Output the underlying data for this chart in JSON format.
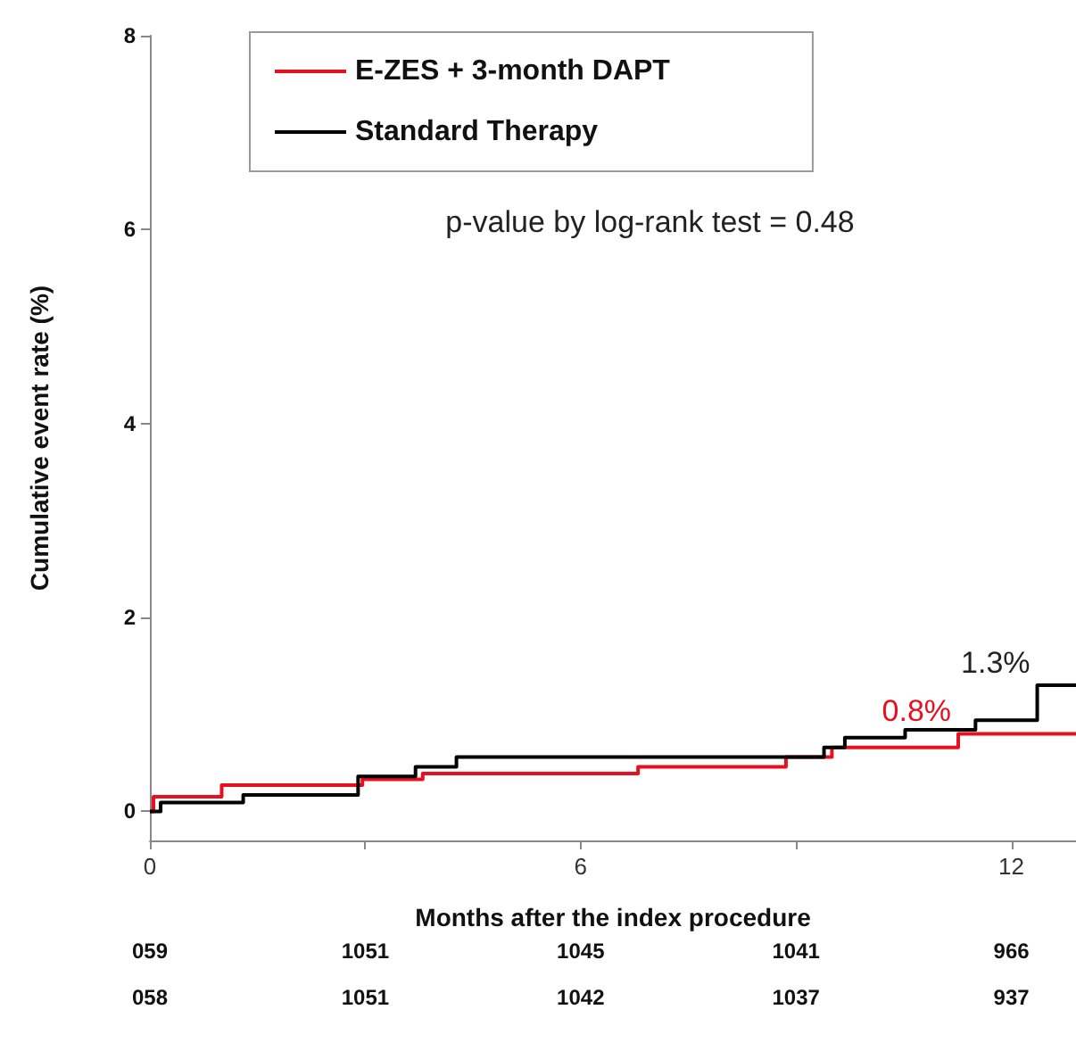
{
  "chart_data": {
    "type": "step",
    "xlabel": "Months after the index procedure",
    "ylabel": "Cumulative event rate (%)",
    "xlim": [
      0,
      12.9
    ],
    "xticks": [
      0,
      {
        "value": 3,
        "label": null
      },
      6,
      {
        "value": 9,
        "label": null
      },
      12
    ],
    "ylim": [
      -0.3,
      8
    ],
    "yticks": [
      0,
      2,
      4,
      6,
      8
    ],
    "legend": "top",
    "line_style": "solid",
    "marker": "none",
    "series": [
      {
        "name": "E-ZES + 3-month DAPT",
        "color": "#e8101e",
        "x": [
          0,
          0.05,
          1.0,
          2.96,
          3.8,
          6.8,
          8.86,
          9.5,
          11.26,
          12.9
        ],
        "values": [
          0,
          0.15,
          0.27,
          0.33,
          0.39,
          0.46,
          0.56,
          0.66,
          0.8,
          0.8
        ]
      },
      {
        "name": "Standard Therapy",
        "color": "#000000",
        "x": [
          0,
          0.15,
          1.3,
          2.9,
          3.7,
          4.27,
          9.39,
          9.68,
          10.52,
          11.5,
          12.36,
          12.9
        ],
        "values": [
          0,
          0.09,
          0.17,
          0.36,
          0.46,
          0.56,
          0.66,
          0.76,
          0.84,
          0.94,
          1.3,
          1.3
        ]
      }
    ],
    "annotations": [
      "p-value by log-rank test = 0.48",
      {
        "text": "1.3%",
        "x": 12.36,
        "y": 1.3
      },
      {
        "text": "0.8%",
        "x": 11.26,
        "y": 0.8
      },
      "059",
      "1051",
      "1045",
      "1041",
      "966",
      "058",
      "1051",
      "1042",
      "1037",
      "937"
    ]
  }
}
